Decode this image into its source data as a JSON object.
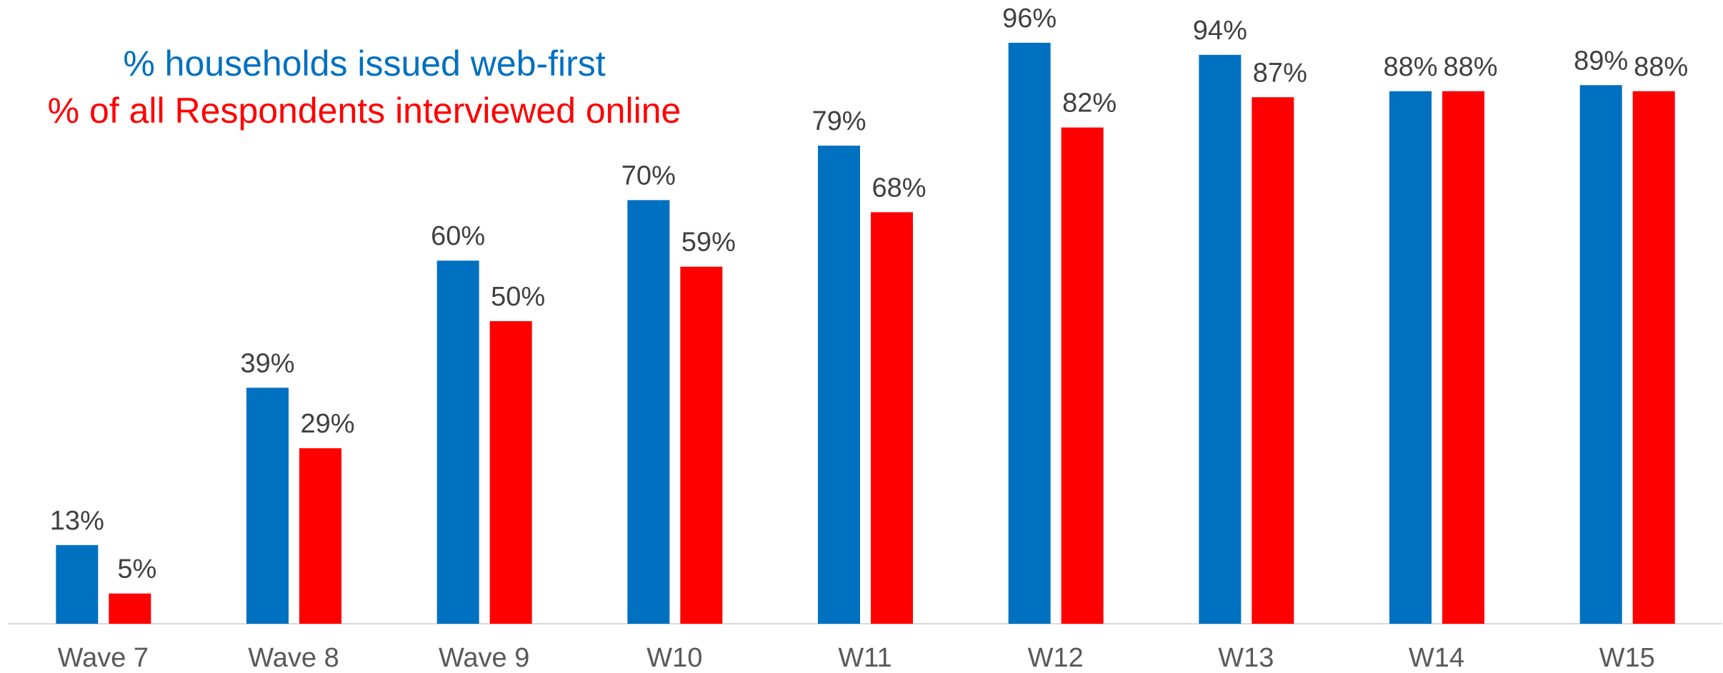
{
  "chart_data": {
    "type": "bar",
    "categories": [
      "Wave 7",
      "Wave 8",
      "Wave 9",
      "W10",
      "W11",
      "W12",
      "W13",
      "W14",
      "W15"
    ],
    "series": [
      {
        "name": "% households issued web-first",
        "color": "#0070c0",
        "values": [
          13,
          39,
          60,
          70,
          79,
          96,
          94,
          88,
          89
        ],
        "value_labels": [
          "13%",
          "39%",
          "60%",
          "70%",
          "79%",
          "96%",
          "94%",
          "88%",
          "89%"
        ]
      },
      {
        "name": "% of all Respondents interviewed online",
        "color": "#ff0000",
        "values": [
          5,
          29,
          50,
          59,
          68,
          82,
          87,
          88,
          88
        ],
        "value_labels": [
          "5%",
          "29%",
          "50%",
          "59%",
          "68%",
          "82%",
          "87%",
          "88%",
          "88%"
        ]
      }
    ],
    "ylim": [
      0,
      100
    ]
  }
}
